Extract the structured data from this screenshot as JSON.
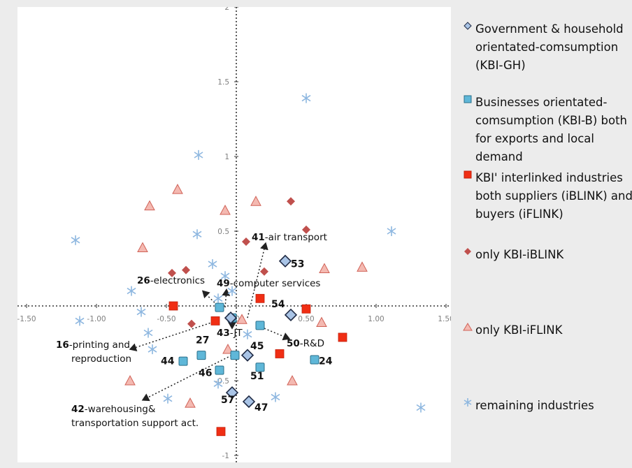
{
  "chart_data": {
    "type": "scatter",
    "title": "",
    "xlabel": "",
    "ylabel": "",
    "xlim": [
      -1.5,
      1.5
    ],
    "ylim": [
      -1,
      2
    ],
    "x_ticks": [
      "-1.50",
      "-1.00",
      "-0.50",
      "0.00",
      "0.50",
      "1.00",
      "1.50"
    ],
    "x_tick_values": [
      -1.5,
      -1.0,
      -0.5,
      0.0,
      0.5,
      1.0,
      1.5
    ],
    "y_ticks": [
      "2",
      "1.5",
      "1",
      "0.5",
      "0",
      "-0.5",
      "-1"
    ],
    "y_tick_values": [
      2,
      1.5,
      1,
      0.5,
      0,
      -0.5,
      -1
    ],
    "colors": {
      "gh_fill": "#a9c4e6",
      "gh_stroke": "#1f2a44",
      "b_fill": "#5fb7d8",
      "b_stroke": "#2a6f8a",
      "link_fill": "#f02e14",
      "link_stroke": "#c21e0a",
      "ib_fill": "#c0504d",
      "if_fill": "#f4b9b1",
      "if_stroke": "#d06257",
      "rem_stroke": "#8eb7e0",
      "axis": "#333333",
      "tick_text": "#7f7f7f",
      "arrow": "#222222"
    },
    "series": [
      {
        "name": "Government & household orientated-comsumption (KBI-GH)",
        "key": "gh",
        "marker": "diamond",
        "points": [
          [
            0.35,
            0.3
          ],
          [
            0.39,
            -0.06
          ],
          [
            -0.04,
            -0.08
          ],
          [
            0.08,
            -0.33
          ],
          [
            -0.03,
            -0.58
          ],
          [
            0.09,
            -0.64
          ]
        ]
      },
      {
        "name": "Businesses orientated-comsumption (KBI-B) both for exports and local demand",
        "key": "b",
        "marker": "square",
        "points": [
          [
            -0.12,
            -0.01
          ],
          [
            -0.03,
            -0.08
          ],
          [
            0.17,
            -0.13
          ],
          [
            -0.25,
            -0.33
          ],
          [
            -0.38,
            -0.37
          ],
          [
            -0.01,
            -0.33
          ],
          [
            -0.12,
            -0.43
          ],
          [
            0.17,
            -0.41
          ],
          [
            0.56,
            -0.36
          ]
        ]
      },
      {
        "name": "KBI' interlinked industries both suppliers (iBLINK) and buyers (iFLINK)",
        "key": "link",
        "marker": "square",
        "points": [
          [
            -0.45,
            0.0
          ],
          [
            -0.15,
            -0.1
          ],
          [
            0.17,
            0.05
          ],
          [
            0.5,
            -0.02
          ],
          [
            0.76,
            -0.21
          ],
          [
            0.31,
            -0.32
          ],
          [
            -0.11,
            -0.84
          ]
        ]
      },
      {
        "name": "only KBI-iBLINK",
        "key": "ib",
        "marker": "diamond",
        "points": [
          [
            0.07,
            0.43
          ],
          [
            0.39,
            0.7
          ],
          [
            0.5,
            0.51
          ],
          [
            -0.46,
            0.22
          ],
          [
            -0.36,
            0.24
          ],
          [
            -0.32,
            -0.12
          ],
          [
            0.2,
            0.23
          ]
        ]
      },
      {
        "name": "only KBI-iFLINK",
        "key": "if",
        "marker": "triangle",
        "points": [
          [
            -0.42,
            0.78
          ],
          [
            -0.62,
            0.67
          ],
          [
            -0.08,
            0.64
          ],
          [
            0.14,
            0.7
          ],
          [
            -0.67,
            0.39
          ],
          [
            0.63,
            0.25
          ],
          [
            0.9,
            0.26
          ],
          [
            0.61,
            -0.11
          ],
          [
            0.04,
            -0.09
          ],
          [
            -0.06,
            -0.29
          ],
          [
            -0.76,
            -0.5
          ],
          [
            0.4,
            -0.5
          ],
          [
            -0.33,
            -0.65
          ]
        ]
      },
      {
        "name": "remaining industries",
        "key": "rem",
        "marker": "star",
        "points": [
          [
            0.5,
            1.39
          ],
          [
            -0.27,
            1.01
          ],
          [
            1.11,
            0.5
          ],
          [
            -1.15,
            0.44
          ],
          [
            -0.28,
            0.48
          ],
          [
            -0.17,
            0.28
          ],
          [
            -0.08,
            0.2
          ],
          [
            -0.75,
            0.1
          ],
          [
            -0.13,
            0.05
          ],
          [
            -0.03,
            0.1
          ],
          [
            -0.68,
            -0.04
          ],
          [
            -1.12,
            -0.1
          ],
          [
            -0.63,
            -0.18
          ],
          [
            0.08,
            -0.19
          ],
          [
            -0.6,
            -0.29
          ],
          [
            -0.49,
            -0.62
          ],
          [
            0.28,
            -0.61
          ],
          [
            1.32,
            -0.68
          ],
          [
            -0.13,
            -0.52
          ]
        ]
      }
    ],
    "point_labels": [
      {
        "text": "53",
        "x": 0.39,
        "y": 0.26
      },
      {
        "text": "54",
        "x": 0.25,
        "y": -0.01
      },
      {
        "text": "45",
        "x": 0.1,
        "y": -0.29
      },
      {
        "text": "27",
        "x": -0.29,
        "y": -0.25
      },
      {
        "text": "44",
        "x": -0.54,
        "y": -0.39
      },
      {
        "text": "46",
        "x": -0.27,
        "y": -0.47
      },
      {
        "text": "51",
        "x": 0.1,
        "y": -0.49
      },
      {
        "text": "24",
        "x": 0.59,
        "y": -0.39
      },
      {
        "text": "57",
        "x": -0.11,
        "y": -0.65
      },
      {
        "text": "47",
        "x": 0.13,
        "y": -0.7
      }
    ],
    "annotations": [
      {
        "num": "41",
        "text": "-air transport",
        "x": 0.11,
        "y": 0.44,
        "ax1": 0.08,
        "ay1": -0.08,
        "ax2": 0.21,
        "ay2": 0.42
      },
      {
        "num": "26",
        "text": "-electronics",
        "x": -0.71,
        "y": 0.15,
        "ax1": -0.12,
        "ay1": -0.01,
        "ax2": -0.24,
        "ay2": 0.1
      },
      {
        "num": "49",
        "text": "-computer services",
        "x": -0.14,
        "y": 0.13,
        "ax1": -0.08,
        "ay1": -0.01,
        "ax2": -0.07,
        "ay2": 0.11
      },
      {
        "num": "43",
        "text": "-JT",
        "x": -0.14,
        "y": -0.2,
        "ax1": -0.03,
        "ay1": -0.07,
        "ax2": -0.03,
        "ay2": -0.15
      },
      {
        "num": "50",
        "text": "-R&D",
        "x": 0.36,
        "y": -0.27,
        "ax1": 0.2,
        "ay1": -0.15,
        "ax2": 0.38,
        "ay2": -0.22
      },
      {
        "num": "16",
        "text": "-printing and",
        "text2": "reproduction",
        "x": -1.29,
        "y": -0.28,
        "ax1": -0.14,
        "ay1": -0.1,
        "ax2": -0.76,
        "ay2": -0.29
      },
      {
        "num": "42",
        "text": "-warehousing&",
        "text2": "transportation support act.",
        "x": -1.18,
        "y": -0.71,
        "ax1": 0.01,
        "ay1": -0.31,
        "ax2": -0.67,
        "ay2": -0.63
      }
    ]
  },
  "legend": {
    "items": [
      {
        "key": "gh",
        "label": "Government & household orientated-comsumption (KBI-GH)"
      },
      {
        "key": "b",
        "label": "Businesses orientated-comsumption (KBI-B) both for exports and local demand"
      },
      {
        "key": "link",
        "label": "KBI' interlinked industries both suppliers (iBLINK) and buyers (iFLINK)"
      },
      {
        "key": "ib",
        "label": "only KBI-iBLINK"
      },
      {
        "key": "if",
        "label": "only KBI-iFLINK"
      },
      {
        "key": "rem",
        "label": "remaining industries"
      }
    ]
  }
}
